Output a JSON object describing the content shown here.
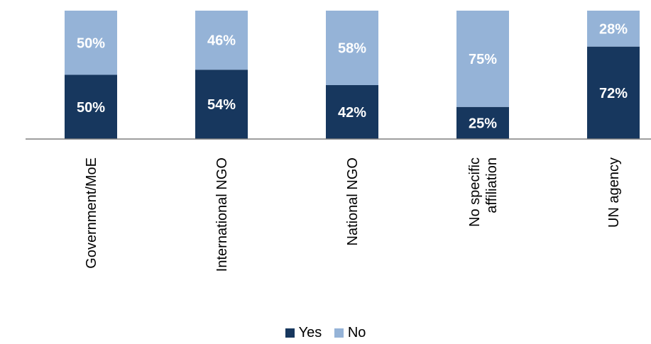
{
  "chart_data": {
    "type": "bar",
    "stacked": true,
    "percent": true,
    "categories": [
      "Government/MoE",
      "International NGO",
      "National NGO",
      "No specific affiliation",
      "UN agency"
    ],
    "category_lines": [
      [
        "Government/MoE"
      ],
      [
        "International NGO"
      ],
      [
        "National NGO"
      ],
      [
        "No specific",
        "affiliation"
      ],
      [
        "UN agency"
      ]
    ],
    "series": [
      {
        "name": "Yes",
        "values": [
          50,
          54,
          42,
          25,
          72
        ],
        "labels": [
          "50%",
          "54%",
          "42%",
          "25%",
          "72%"
        ],
        "color": "#17375e"
      },
      {
        "name": "No",
        "values": [
          50,
          46,
          58,
          75,
          28
        ],
        "labels": [
          "50%",
          "46%",
          "58%",
          "75%",
          "28%"
        ],
        "color": "#95b3d7"
      }
    ],
    "ylim": [
      0,
      100
    ],
    "legend_position": "bottom",
    "grid": false,
    "axis_color": "#7f7f7f"
  }
}
